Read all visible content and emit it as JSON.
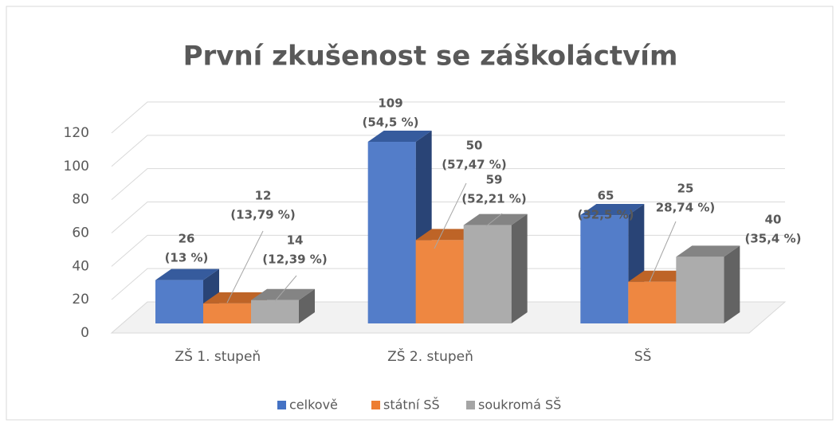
{
  "chart_data": {
    "type": "bar3d",
    "title": "První zkušenost se záškoláctvím",
    "categories": [
      "ZŠ 1. stupeň",
      "ZŠ 2. stupeň",
      "SŠ"
    ],
    "series": [
      {
        "name": "celkově",
        "color": "#4472c4",
        "values": [
          26,
          109,
          65
        ],
        "value_labels": [
          [
            "26",
            "(13 %)"
          ],
          [
            "109",
            "(54,5 %)"
          ],
          [
            "65",
            "(32,5 %)"
          ]
        ]
      },
      {
        "name": "státní SŠ",
        "color": "#ed7d31",
        "values": [
          12,
          50,
          25
        ],
        "value_labels": [
          [
            "12",
            "(13,79 %)"
          ],
          [
            "50",
            "(57,47 %)"
          ],
          [
            "25",
            "28,74 %)"
          ]
        ]
      },
      {
        "name": "soukromá SŠ",
        "color": "#a5a5a5",
        "values": [
          14,
          59,
          40
        ],
        "value_labels": [
          [
            "14",
            "(12,39 %)"
          ],
          [
            "59",
            "(52,21 %)"
          ],
          [
            "40",
            "(35,4 %)"
          ]
        ]
      }
    ],
    "ylim": [
      0,
      120
    ],
    "yticks": [
      0,
      20,
      40,
      60,
      80,
      100,
      120
    ],
    "grid": true,
    "legend": "bottom"
  }
}
